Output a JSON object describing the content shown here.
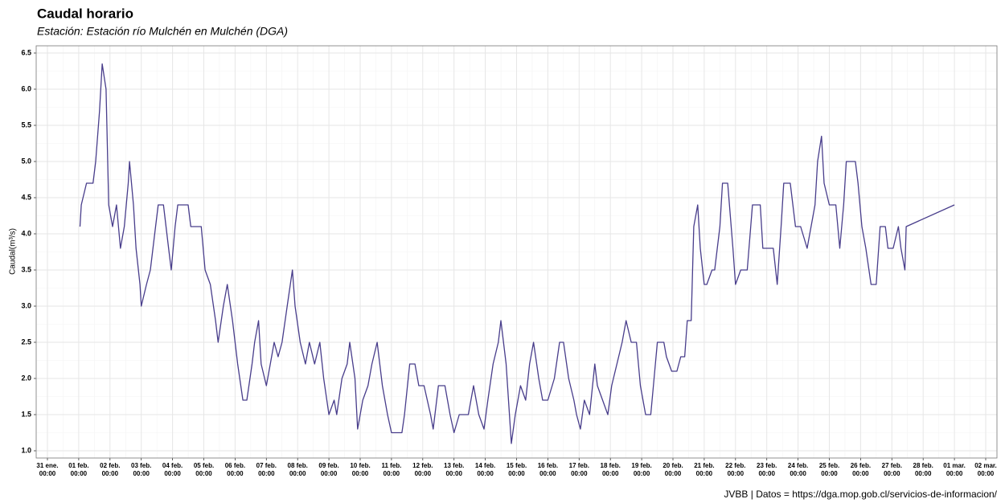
{
  "chart_data": {
    "type": "line",
    "title": "Caudal horario",
    "subtitle": "Estación: Estación río Mulchén en Mulchén (DGA)",
    "y_label": "Caudal(m³/s)",
    "caption": "JVBB | Datos = https://dga.mop.gob.cl/servicios-de-informacion/",
    "grid": true,
    "xlim": [
      "31 ene. 00:00",
      "02 mar. 00:00"
    ],
    "xticks": [
      {
        "value": "31 ene. 00:00",
        "label": [
          "31 ene.",
          "00:00"
        ]
      },
      {
        "value": "01 feb. 00:00",
        "label": [
          "01 feb.",
          "00:00"
        ]
      },
      {
        "value": "02 feb. 00:00",
        "label": [
          "02 feb.",
          "00:00"
        ]
      },
      {
        "value": "03 feb. 00:00",
        "label": [
          "03 feb.",
          "00:00"
        ]
      },
      {
        "value": "04 feb. 00:00",
        "label": [
          "04 feb.",
          "00:00"
        ]
      },
      {
        "value": "05 feb. 00:00",
        "label": [
          "05 feb.",
          "00:00"
        ]
      },
      {
        "value": "06 feb. 00:00",
        "label": [
          "06 feb.",
          "00:00"
        ]
      },
      {
        "value": "07 feb. 00:00",
        "label": [
          "07 feb.",
          "00:00"
        ]
      },
      {
        "value": "08 feb. 00:00",
        "label": [
          "08 feb.",
          "00:00"
        ]
      },
      {
        "value": "09 feb. 00:00",
        "label": [
          "09 feb.",
          "00:00"
        ]
      },
      {
        "value": "10 feb. 00:00",
        "label": [
          "10 feb.",
          "00:00"
        ]
      },
      {
        "value": "11 feb. 00:00",
        "label": [
          "11 feb.",
          "00:00"
        ]
      },
      {
        "value": "12 feb. 00:00",
        "label": [
          "12 feb.",
          "00:00"
        ]
      },
      {
        "value": "13 feb. 00:00",
        "label": [
          "13 feb.",
          "00:00"
        ]
      },
      {
        "value": "14 feb. 00:00",
        "label": [
          "14 feb.",
          "00:00"
        ]
      },
      {
        "value": "15 feb. 00:00",
        "label": [
          "15 feb.",
          "00:00"
        ]
      },
      {
        "value": "16 feb. 00:00",
        "label": [
          "16 feb.",
          "00:00"
        ]
      },
      {
        "value": "17 feb. 00:00",
        "label": [
          "17 feb.",
          "00:00"
        ]
      },
      {
        "value": "18 feb. 00:00",
        "label": [
          "18 feb.",
          "00:00"
        ]
      },
      {
        "value": "19 feb. 00:00",
        "label": [
          "19 feb.",
          "00:00"
        ]
      },
      {
        "value": "20 feb. 00:00",
        "label": [
          "20 feb.",
          "00:00"
        ]
      },
      {
        "value": "21 feb. 00:00",
        "label": [
          "21 feb.",
          "00:00"
        ]
      },
      {
        "value": "22 feb. 00:00",
        "label": [
          "22 feb.",
          "00:00"
        ]
      },
      {
        "value": "23 feb. 00:00",
        "label": [
          "23 feb.",
          "00:00"
        ]
      },
      {
        "value": "24 feb. 00:00",
        "label": [
          "24 feb.",
          "00:00"
        ]
      },
      {
        "value": "25 feb. 00:00",
        "label": [
          "25 feb.",
          "00:00"
        ]
      },
      {
        "value": "26 feb. 00:00",
        "label": [
          "26 feb.",
          "00:00"
        ]
      },
      {
        "value": "27 feb. 00:00",
        "label": [
          "27 feb.",
          "00:00"
        ]
      },
      {
        "value": "28 feb. 00:00",
        "label": [
          "28 feb.",
          "00:00"
        ]
      },
      {
        "value": "01 mar. 00:00",
        "label": [
          "01 mar.",
          "00:00"
        ]
      },
      {
        "value": "02 mar. 00:00",
        "label": [
          "02 mar.",
          "00:00"
        ]
      }
    ],
    "ylim": [
      0.9,
      6.6
    ],
    "yticks": [
      {
        "value": 1,
        "label": "1.0"
      },
      1.5,
      {
        "value": 2,
        "label": "2.0"
      },
      2.5,
      {
        "value": 3,
        "label": "3.0"
      },
      3.5,
      {
        "value": 4,
        "label": "4.0"
      },
      4.5,
      {
        "value": 5,
        "label": "5.0"
      },
      5.5,
      {
        "value": 6,
        "label": "6.0"
      },
      6.5
    ],
    "series": [
      {
        "name": "Caudal",
        "color": "#483d8b",
        "x": [
          "01 feb. 01:00",
          "01 feb. 02:00",
          "01 feb. 06:00",
          "01 feb. 11:00",
          "01 feb. 13:00",
          "01 feb. 16:00",
          "01 feb. 18:00",
          "01 feb. 21:00",
          "01 feb. 23:00",
          "02 feb. 02:00",
          "02 feb. 05:00",
          "02 feb. 08:00",
          "02 feb. 11:00",
          "02 feb. 14:00",
          "02 feb. 15:00",
          "02 feb. 18:00",
          "02 feb. 20:00",
          "02 feb. 23:00",
          "03 feb. 00:00",
          "03 feb. 04:00",
          "03 feb. 07:00",
          "03 feb. 11:00",
          "03 feb. 13:00",
          "03 feb. 17:00",
          "03 feb. 21:00",
          "03 feb. 23:00",
          "04 feb. 02:00",
          "04 feb. 04:00",
          "04 feb. 12:00",
          "04 feb. 14:00",
          "04 feb. 22:00",
          "05 feb. 01:00",
          "05 feb. 05:00",
          "05 feb. 09:00",
          "05 feb. 11:00",
          "05 feb. 15:00",
          "05 feb. 18:00",
          "05 feb. 22:00",
          "06 feb. 02:00",
          "06 feb. 06:00",
          "06 feb. 09:00",
          "06 feb. 13:00",
          "06 feb. 15:00",
          "06 feb. 18:00",
          "06 feb. 20:00",
          "07 feb. 00:00",
          "07 feb. 03:00",
          "07 feb. 06:00",
          "07 feb. 09:00",
          "07 feb. 12:00",
          "07 feb. 16:00",
          "07 feb. 20:00",
          "07 feb. 22:00",
          "08 feb. 02:00",
          "08 feb. 06:00",
          "08 feb. 09:00",
          "08 feb. 13:00",
          "08 feb. 17:00",
          "08 feb. 20:00",
          "09 feb. 00:00",
          "09 feb. 04:00",
          "09 feb. 06:00",
          "09 feb. 10:00",
          "09 feb. 14:00",
          "09 feb. 16:00",
          "09 feb. 20:00",
          "09 feb. 22:00",
          "10 feb. 02:00",
          "10 feb. 06:00",
          "10 feb. 09:00",
          "10 feb. 13:00",
          "10 feb. 17:00",
          "10 feb. 21:00",
          "11 feb. 00:00",
          "11 feb. 08:00",
          "11 feb. 10:00",
          "11 feb. 14:00",
          "11 feb. 18:00",
          "11 feb. 21:00",
          "12 feb. 01:00",
          "12 feb. 06:00",
          "12 feb. 08:00",
          "12 feb. 12:00",
          "12 feb. 17:00",
          "12 feb. 21:00",
          "13 feb. 00:00",
          "13 feb. 04:00",
          "13 feb. 11:00",
          "13 feb. 15:00",
          "13 feb. 19:00",
          "13 feb. 23:00",
          "14 feb. 02:00",
          "14 feb. 06:00",
          "14 feb. 10:00",
          "14 feb. 12:00",
          "14 feb. 16:00",
          "14 feb. 20:00",
          "14 feb. 23:00",
          "15 feb. 03:00",
          "15 feb. 07:00",
          "15 feb. 10:00",
          "15 feb. 13:00",
          "15 feb. 17:00",
          "15 feb. 20:00",
          "16 feb. 00:00",
          "16 feb. 05:00",
          "16 feb. 09:00",
          "16 feb. 12:00",
          "16 feb. 16:00",
          "16 feb. 20:00",
          "16 feb. 22:00",
          "17 feb. 01:00",
          "17 feb. 04:00",
          "17 feb. 08:00",
          "17 feb. 12:00",
          "17 feb. 14:00",
          "17 feb. 18:00",
          "17 feb. 22:00",
          "18 feb. 01:00",
          "18 feb. 05:00",
          "18 feb. 09:00",
          "18 feb. 12:00",
          "18 feb. 16:00",
          "18 feb. 20:00",
          "18 feb. 23:00",
          "19 feb. 03:00",
          "19 feb. 07:00",
          "19 feb. 09:00",
          "19 feb. 12:00",
          "19 feb. 17:00",
          "19 feb. 19:00",
          "19 feb. 23:00",
          "20 feb. 03:00",
          "20 feb. 06:00",
          "20 feb. 09:00",
          "20 feb. 11:00",
          "20 feb. 14:00",
          "20 feb. 16:00",
          "20 feb. 19:00",
          "20 feb. 21:00",
          "21 feb. 00:00",
          "21 feb. 02:00",
          "21 feb. 06:00",
          "21 feb. 08:00",
          "21 feb. 12:00",
          "21 feb. 14:00",
          "21 feb. 18:00",
          "21 feb. 22:00",
          "22 feb. 00:00",
          "22 feb. 04:00",
          "22 feb. 09:00",
          "22 feb. 13:00",
          "22 feb. 19:00",
          "22 feb. 21:00",
          "23 feb. 05:00",
          "23 feb. 08:00",
          "23 feb. 11:00",
          "23 feb. 13:00",
          "23 feb. 18:00",
          "23 feb. 22:00",
          "24 feb. 02:00",
          "24 feb. 07:00",
          "24 feb. 10:00",
          "24 feb. 13:00",
          "24 feb. 15:00",
          "24 feb. 18:00",
          "24 feb. 20:00",
          "25 feb. 00:00",
          "25 feb. 05:00",
          "25 feb. 08:00",
          "25 feb. 11:00",
          "25 feb. 13:00",
          "25 feb. 20:00",
          "25 feb. 22:00",
          "26 feb. 01:00",
          "26 feb. 04:00",
          "26 feb. 08:00",
          "26 feb. 12:00",
          "26 feb. 15:00",
          "26 feb. 19:00",
          "26 feb. 21:00",
          "27 feb. 01:00",
          "27 feb. 05:00",
          "27 feb. 07:00",
          "27 feb. 10:00",
          "27 feb. 11:00",
          "01 mar. 00:00"
        ],
        "values": [
          4.1,
          4.4,
          4.7,
          4.7,
          5.0,
          5.7,
          6.35,
          6.0,
          4.4,
          4.1,
          4.4,
          3.8,
          4.1,
          4.7,
          5.0,
          4.4,
          3.8,
          3.3,
          3.0,
          3.3,
          3.5,
          4.1,
          4.4,
          4.4,
          3.8,
          3.5,
          4.1,
          4.4,
          4.4,
          4.1,
          4.1,
          3.5,
          3.3,
          2.8,
          2.5,
          3.0,
          3.3,
          2.8,
          2.2,
          1.7,
          1.7,
          2.2,
          2.5,
          2.8,
          2.2,
          1.9,
          2.2,
          2.5,
          2.3,
          2.5,
          3.0,
          3.5,
          3.0,
          2.5,
          2.2,
          2.5,
          2.2,
          2.5,
          2.0,
          1.5,
          1.7,
          1.5,
          2.0,
          2.2,
          2.5,
          2.0,
          1.3,
          1.7,
          1.9,
          2.2,
          2.5,
          1.9,
          1.5,
          1.25,
          1.25,
          1.5,
          2.2,
          2.2,
          1.9,
          1.9,
          1.5,
          1.3,
          1.9,
          1.9,
          1.5,
          1.25,
          1.5,
          1.5,
          1.9,
          1.5,
          1.3,
          1.7,
          2.2,
          2.5,
          2.8,
          2.2,
          1.1,
          1.5,
          1.9,
          1.7,
          2.2,
          2.5,
          2.0,
          1.7,
          1.7,
          2.0,
          2.5,
          2.5,
          2.0,
          1.7,
          1.5,
          1.3,
          1.7,
          1.5,
          2.2,
          1.9,
          1.7,
          1.5,
          1.9,
          2.2,
          2.5,
          2.8,
          2.5,
          2.5,
          1.9,
          1.5,
          1.5,
          1.9,
          2.5,
          2.5,
          2.3,
          2.1,
          2.1,
          2.3,
          2.3,
          2.8,
          2.8,
          4.1,
          4.4,
          3.8,
          3.3,
          3.3,
          3.5,
          3.5,
          4.1,
          4.7,
          4.7,
          3.8,
          3.3,
          3.5,
          3.5,
          4.4,
          4.4,
          3.8,
          3.8,
          3.3,
          4.1,
          4.7,
          4.7,
          4.1,
          4.1,
          3.8,
          4.1,
          4.4,
          5.0,
          5.35,
          4.7,
          4.4,
          4.4,
          3.8,
          4.4,
          5.0,
          5.0,
          4.7,
          4.1,
          3.8,
          3.3,
          3.3,
          4.1,
          4.1,
          3.8,
          3.8,
          4.1,
          3.8,
          3.5,
          4.1,
          4.4
        ]
      }
    ]
  }
}
